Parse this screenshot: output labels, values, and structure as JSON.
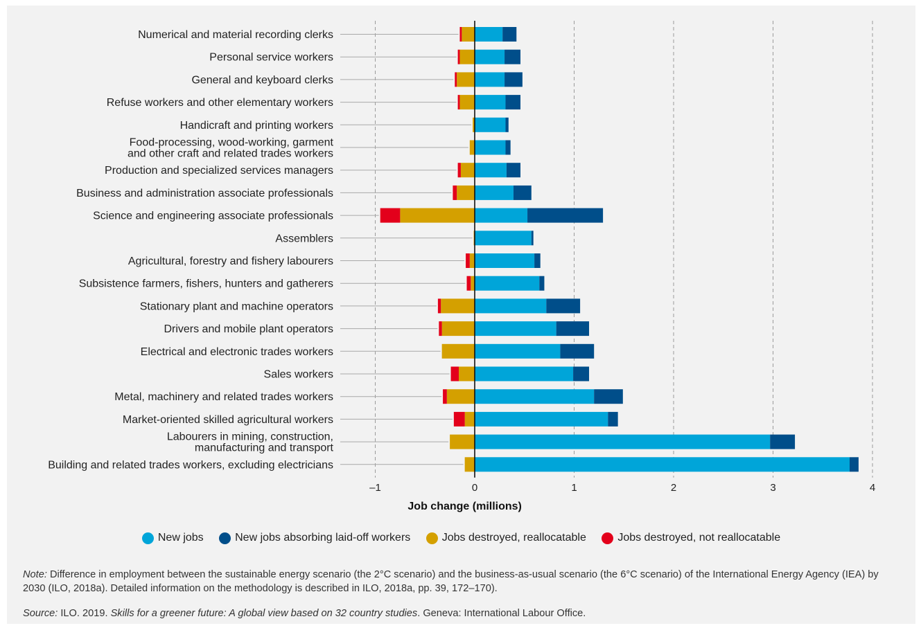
{
  "chart_data": {
    "type": "bar",
    "orientation": "horizontal",
    "stacked": true,
    "xlabel": "Job change (millions)",
    "xlim": [
      -1,
      4
    ],
    "xticks": [
      -1,
      0,
      1,
      2,
      3,
      4
    ],
    "xtick_labels": [
      "–1",
      "0",
      "1",
      "2",
      "3",
      "4"
    ],
    "grid": "vertical dashed",
    "categories": [
      "Numerical and material recording clerks",
      "Personal service workers",
      "General and keyboard clerks",
      "Refuse workers and other elementary workers",
      "Handicraft and printing workers",
      "Food-processing, wood-working, garment\nand other craft and related trades workers",
      "Production and specialized services managers",
      "Business and administration associate professionals",
      "Science and engineering associate professionals",
      "Assemblers",
      "Agricultural, forestry and fishery labourers",
      "Subsistence farmers, fishers, hunters and gatherers",
      "Stationary plant and machine operators",
      "Drivers and mobile plant operators",
      "Electrical and electronic trades workers",
      "Sales workers",
      "Metal, machinery and related trades workers",
      "Market-oriented skilled agricultural workers",
      "Labourers in mining, construction,\nmanufacturing and transport",
      "Building and related trades workers, excluding electricians"
    ],
    "series": [
      {
        "name": "New jobs",
        "color": "#00a5d9",
        "values": [
          0.28,
          0.3,
          0.3,
          0.31,
          0.31,
          0.31,
          0.32,
          0.39,
          0.53,
          0.57,
          0.6,
          0.65,
          0.72,
          0.82,
          0.86,
          0.99,
          1.2,
          1.34,
          2.97,
          3.77
        ]
      },
      {
        "name": "New jobs absorbing laid-off workers",
        "color": "#004e8a",
        "values": [
          0.14,
          0.16,
          0.18,
          0.15,
          0.03,
          0.05,
          0.14,
          0.18,
          0.76,
          0.02,
          0.06,
          0.05,
          0.34,
          0.33,
          0.34,
          0.16,
          0.29,
          0.1,
          0.25,
          0.09
        ]
      },
      {
        "name": "Jobs destroyed, reallocatable",
        "color": "#d4a000",
        "values": [
          -0.13,
          -0.15,
          -0.18,
          -0.15,
          -0.02,
          -0.05,
          -0.14,
          -0.18,
          -0.75,
          -0.01,
          -0.05,
          -0.04,
          -0.34,
          -0.33,
          -0.33,
          -0.16,
          -0.28,
          -0.1,
          -0.25,
          -0.1
        ]
      },
      {
        "name": "Jobs destroyed, not reallocatable",
        "color": "#e3001b",
        "values": [
          -0.02,
          -0.02,
          -0.02,
          -0.02,
          0,
          0,
          -0.03,
          -0.04,
          -0.2,
          0,
          -0.04,
          -0.04,
          -0.03,
          -0.03,
          0,
          -0.08,
          -0.04,
          -0.11,
          0,
          0
        ]
      }
    ]
  },
  "note": {
    "label": "Note:",
    "text": " Difference in employment between the sustainable energy scenario (the 2°C scenario) and the business-as-usual scenario (the 6°C scenario) of the International Energy Agency (IEA) by 2030 (ILO, 2018a). Detailed information on the methodology is described in ILO, 2018a, pp. 39, 172–170)."
  },
  "source": {
    "label": "Source:",
    "text_before": " ILO. 2019. ",
    "title": "Skills for a greener future: A global view based on 32 country studies",
    "text_after": ". Geneva: International Labour Office."
  }
}
